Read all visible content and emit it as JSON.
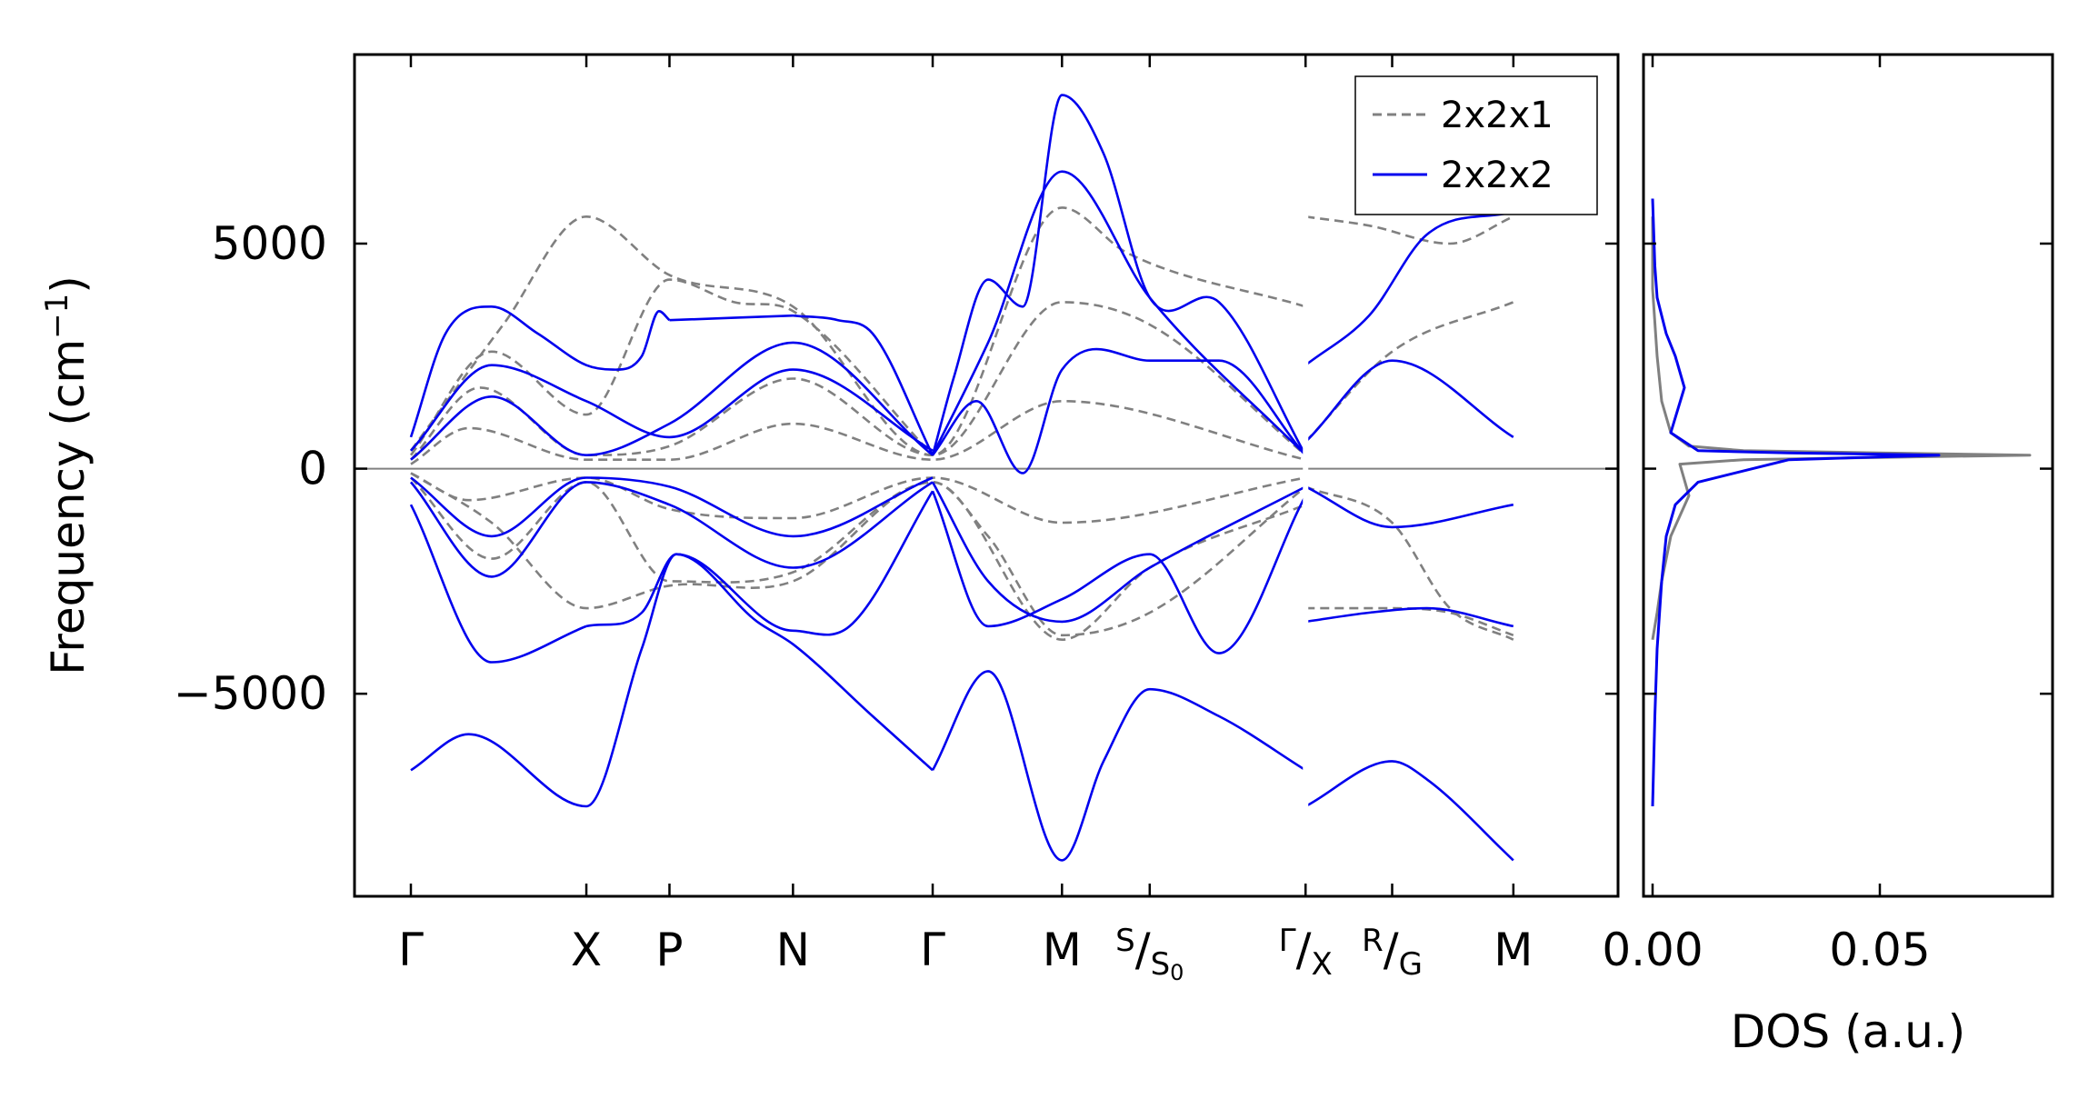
{
  "chart_data": [
    {
      "type": "line",
      "title": "",
      "xlabel": "",
      "ylabel": "Frequency (cm$^{-1}$)",
      "ylabel_parts": {
        "base": "Frequency (cm",
        "sup": "−1",
        "close": ")"
      },
      "ylim": [
        -9500,
        9200
      ],
      "yticks": [
        -5000,
        0,
        5000
      ],
      "ytick_labels": [
        "−5000",
        "0",
        "5000"
      ],
      "kpath": [
        {
          "label": "Γ",
          "pos": 0.0
        },
        {
          "label": "X",
          "pos": 0.152
        },
        {
          "label": "P",
          "pos": 0.224
        },
        {
          "label": "N",
          "pos": 0.331
        },
        {
          "label": "Γ",
          "pos": 0.452
        },
        {
          "label": "M",
          "pos": 0.564
        },
        {
          "label": "S",
          "sub": "S0",
          "pos": 0.64
        },
        {
          "label": "Γ",
          "sub": "X",
          "pos": 0.775
        },
        {
          "label": "R",
          "sub": "G",
          "pos": 0.85
        },
        {
          "label": "M",
          "pos": 0.955
        }
      ],
      "legend": {
        "placement": "top-right",
        "entries": [
          "2x2x1",
          "2x2x2"
        ]
      },
      "grid": false,
      "series": [
        {
          "name": "2x2x1",
          "style": "dashed",
          "color": "#808080",
          "bands": [
            {
              "x": [
                0.0,
                0.08,
                0.152,
                0.224,
                0.331,
                0.452,
                0.564,
                0.62,
                0.775
              ],
              "y": [
                400,
                3200,
                5600,
                4300,
                3600,
                300,
                5800,
                4800,
                3600
              ]
            },
            {
              "x": [
                0.0,
                0.07,
                0.152,
                0.224,
                0.28,
                0.331,
                0.452
              ],
              "y": [
                300,
                2600,
                1200,
                4200,
                3700,
                3500,
                300
              ]
            },
            {
              "x": [
                0.0,
                0.06,
                0.152,
                0.224,
                0.331,
                0.452,
                0.564,
                0.64,
                0.775
              ],
              "y": [
                200,
                1800,
                300,
                500,
                2000,
                300,
                3700,
                3200,
                300
              ]
            },
            {
              "x": [
                0.0,
                0.07,
                0.152,
                0.224,
                0.331,
                0.452,
                0.5,
                0.564,
                0.64,
                0.775
              ],
              "y": [
                -200,
                -2000,
                -300,
                -2500,
                -2300,
                -300,
                -1500,
                -3700,
                -3200,
                -400
              ]
            },
            {
              "x": [
                0.0,
                0.07,
                0.152,
                0.224,
                0.331,
                0.452,
                0.564,
                0.64,
                0.775
              ],
              "y": [
                -100,
                -1200,
                -3100,
                -2600,
                -2500,
                -300,
                -3800,
                -2200,
                -800
              ]
            },
            {
              "x": [
                0.0,
                0.05,
                0.152,
                0.224,
                0.331,
                0.452,
                0.564,
                0.775
              ],
              "y": [
                100,
                900,
                200,
                200,
                1000,
                200,
                1500,
                200
              ]
            },
            {
              "x": [
                0.0,
                0.05,
                0.152,
                0.224,
                0.331,
                0.452,
                0.564,
                0.775
              ],
              "y": [
                -100,
                -700,
                -200,
                -900,
                -1100,
                -200,
                -1200,
                -200
              ]
            },
            {
              "x": [
                0.775,
                0.83,
                0.9,
                0.955
              ],
              "y": [
                5600,
                5400,
                5000,
                5600
              ]
            },
            {
              "x": [
                0.775,
                0.85,
                0.955
              ],
              "y": [
                600,
                2600,
                3700
              ]
            },
            {
              "x": [
                0.775,
                0.85,
                0.9,
                0.955
              ],
              "y": [
                -400,
                -1200,
                -3100,
                -3800
              ]
            },
            {
              "x": [
                0.775,
                0.85,
                0.9,
                0.955
              ],
              "y": [
                -3100,
                -3100,
                -3200,
                -3700
              ]
            }
          ]
        },
        {
          "name": "2x2x2",
          "style": "solid",
          "color": "#0000ee",
          "bands": [
            {
              "x": [
                0.0,
                0.03,
                0.07,
                0.11,
                0.152,
                0.175,
                0.2,
                0.215,
                0.224
              ],
              "y": [
                700,
                3000,
                3600,
                3000,
                2300,
                2200,
                2500,
                3500,
                3300
              ]
            },
            {
              "x": [
                0.224,
                0.331
              ],
              "y": [
                3300,
                3400
              ]
            },
            {
              "x": [
                0.331,
                0.37,
                0.4,
                0.452
              ],
              "y": [
                3400,
                3300,
                3000,
                300
              ]
            },
            {
              "x": [
                0.452,
                0.47,
                0.5,
                0.53,
                0.564,
                0.6,
                0.64,
                0.7,
                0.775
              ],
              "y": [
                300,
                2000,
                4200,
                3600,
                8300,
                7000,
                3800,
                3700,
                300
              ]
            },
            {
              "x": [
                0.452,
                0.5,
                0.564,
                0.64,
                0.775
              ],
              "y": [
                300,
                2800,
                6600,
                3800,
                300
              ]
            },
            {
              "x": [
                0.0,
                0.07,
                0.152,
                0.224,
                0.331,
                0.452
              ],
              "y": [
                400,
                2300,
                1500,
                700,
                2200,
                400
              ]
            },
            {
              "x": [
                0.0,
                0.07,
                0.152,
                0.224,
                0.331,
                0.452
              ],
              "y": [
                200,
                1600,
                300,
                1000,
                2800,
                300
              ]
            },
            {
              "x": [
                0.452,
                0.49,
                0.53,
                0.564,
                0.64,
                0.7,
                0.775
              ],
              "y": [
                300,
                1500,
                -100,
                2200,
                2400,
                2400,
                300
              ]
            },
            {
              "x": [
                0.0,
                0.07,
                0.152
              ],
              "y": [
                -800,
                -4300,
                -3500
              ]
            },
            {
              "x": [
                0.152,
                0.2,
                0.23,
                0.331,
                0.38,
                0.452
              ],
              "y": [
                -3500,
                -3200,
                -1900,
                -3600,
                -3500,
                -500
              ]
            },
            {
              "x": [
                0.0,
                0.05,
                0.152,
                0.2,
                0.23,
                0.3,
                0.331,
                0.4,
                0.452
              ],
              "y": [
                -6700,
                -5900,
                -7500,
                -4000,
                -1900,
                -3400,
                -3900,
                -5500,
                -6700
              ]
            },
            {
              "x": [
                0.452,
                0.5,
                0.564,
                0.6,
                0.64,
                0.7,
                0.775
              ],
              "y": [
                -6700,
                -4500,
                -8700,
                -6500,
                -4900,
                -5500,
                -6700
              ]
            },
            {
              "x": [
                0.452,
                0.5,
                0.564,
                0.64,
                0.7,
                0.775
              ],
              "y": [
                -500,
                -3500,
                -2900,
                -1900,
                -4100,
                -600
              ]
            },
            {
              "x": [
                0.0,
                0.07,
                0.152,
                0.224,
                0.331,
                0.452
              ],
              "y": [
                -300,
                -2400,
                -300,
                -800,
                -2200,
                -300
              ]
            },
            {
              "x": [
                0.0,
                0.07,
                0.152,
                0.224,
                0.331,
                0.452
              ],
              "y": [
                -200,
                -1500,
                -200,
                -400,
                -1500,
                -200
              ]
            },
            {
              "x": [
                0.452,
                0.5,
                0.564,
                0.64,
                0.775
              ],
              "y": [
                -300,
                -2500,
                -3400,
                -2200,
                -400
              ]
            },
            {
              "x": [
                0.775,
                0.83,
                0.88,
                0.955
              ],
              "y": [
                2300,
                3400,
                5200,
                5700
              ]
            },
            {
              "x": [
                0.775,
                0.85,
                0.955
              ],
              "y": [
                600,
                2400,
                700
              ]
            },
            {
              "x": [
                0.775,
                0.85,
                0.955
              ],
              "y": [
                -400,
                -1300,
                -800
              ]
            },
            {
              "x": [
                0.775,
                0.83,
                0.88,
                0.955
              ],
              "y": [
                -3400,
                -3200,
                -3100,
                -3500
              ]
            },
            {
              "x": [
                0.775,
                0.85,
                0.88,
                0.955
              ],
              "y": [
                -7500,
                -6500,
                -6900,
                -8700
              ]
            }
          ]
        }
      ]
    },
    {
      "type": "line",
      "title": "",
      "xlabel": "DOS (a.u.)",
      "ylabel": "",
      "xlim": [
        -0.002,
        0.088
      ],
      "xticks": [
        0.0,
        0.05
      ],
      "xtick_labels": [
        "0.00",
        "0.05"
      ],
      "ylim": [
        -9500,
        9200
      ],
      "grid": false,
      "series": [
        {
          "name": "2x2x1",
          "color": "#808080",
          "x": [
            0.0,
            0.0,
            0.001,
            0.002,
            0.004,
            0.008,
            0.02,
            0.05,
            0.083,
            0.05,
            0.02,
            0.006,
            0.008,
            0.004,
            0.002,
            0.001,
            0.0
          ],
          "y": [
            5600,
            4000,
            2500,
            1500,
            800,
            500,
            400,
            350,
            300,
            250,
            200,
            100,
            -600,
            -1500,
            -2500,
            -3200,
            -3800
          ]
        },
        {
          "name": "2x2x2",
          "color": "#0000ee",
          "x": [
            0.0,
            0.0005,
            0.001,
            0.002,
            0.003,
            0.005,
            0.01,
            0.03,
            0.063,
            0.03,
            0.01,
            0.004,
            0.007,
            0.005,
            0.003,
            0.002,
            0.001,
            0.0005,
            0.0
          ],
          "y": [
            -7500,
            -5500,
            -4000,
            -2500,
            -1500,
            -800,
            -300,
            200,
            300,
            350,
            400,
            800,
            1800,
            2500,
            3000,
            3400,
            3800,
            4500,
            6000
          ]
        }
      ]
    }
  ]
}
